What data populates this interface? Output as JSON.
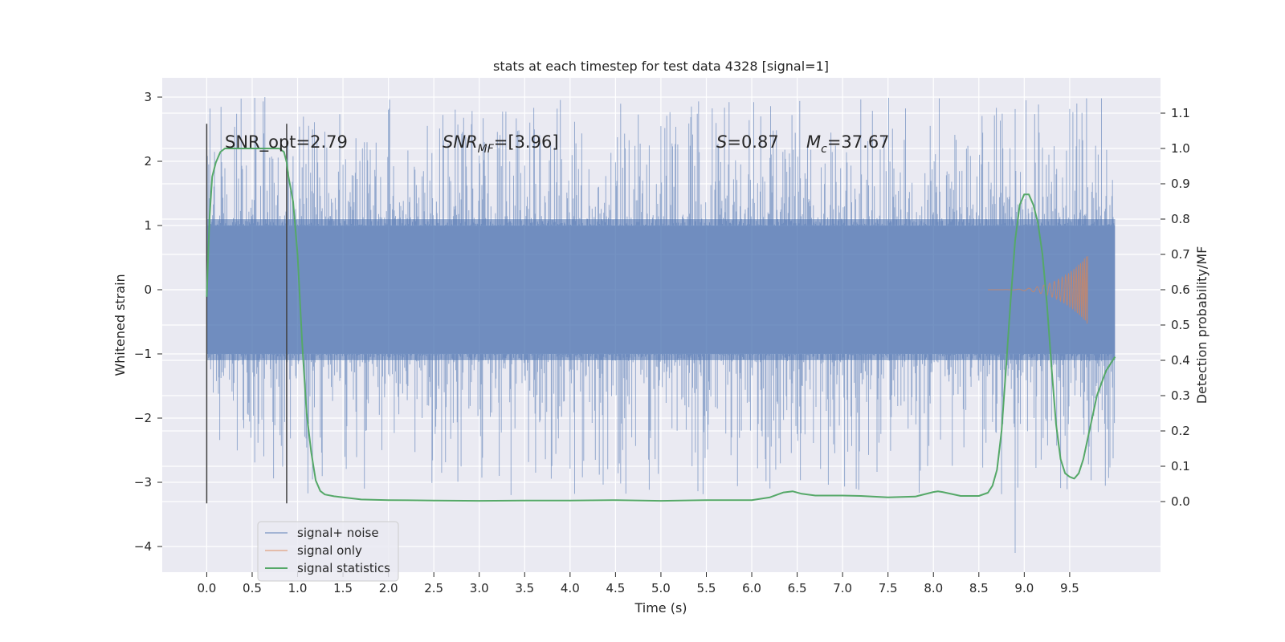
{
  "chart_data": {
    "type": "line",
    "title": "stats at each timestep for test data 4328 [signal=1]",
    "xlabel": "Time (s)",
    "ylabel": "Whitened strain",
    "ylabel_right": "Detection probability/MF",
    "xlim": [
      -0.49,
      10.5
    ],
    "ylim": [
      -4.4,
      3.3
    ],
    "ylim_right": [
      -0.2,
      1.2
    ],
    "xticks": [
      "0.0",
      "0.5",
      "1.0",
      "1.5",
      "2.0",
      "2.5",
      "3.0",
      "3.5",
      "4.0",
      "4.5",
      "5.0",
      "5.5",
      "6.0",
      "6.5",
      "7.0",
      "7.5",
      "8.0",
      "8.5",
      "9.0",
      "9.5"
    ],
    "yticks": [
      "3",
      "2",
      "1",
      "0",
      "−1",
      "−2",
      "−3",
      "−4"
    ],
    "yticks_right": [
      "1.1",
      "1.0",
      "0.9",
      "0.8",
      "0.7",
      "0.6",
      "0.5",
      "0.4",
      "0.3",
      "0.2",
      "0.1",
      "0.0"
    ],
    "grid": true,
    "legend_position": "lower-left",
    "series": [
      {
        "name": "signal+ noise",
        "color": "#4c72b0",
        "axis": "left",
        "kind": "noise strain 0–10 s, bulk ±1.1, peaks +3.0 / −4.1"
      },
      {
        "name": "signal only",
        "color": "#dd8452",
        "axis": "left",
        "kind": "chirp rising near 9.7 s, peak ±0.55"
      },
      {
        "name": "signal statistics",
        "color": "#55a868",
        "axis": "right",
        "x": [
          0.0,
          0.03,
          0.06,
          0.1,
          0.15,
          0.2,
          0.3,
          0.4,
          0.5,
          0.6,
          0.7,
          0.8,
          0.85,
          0.88,
          0.9,
          0.95,
          1.0,
          1.05,
          1.1,
          1.15,
          1.2,
          1.25,
          1.3,
          1.4,
          1.5,
          1.7,
          2.0,
          2.5,
          3.0,
          3.5,
          4.0,
          4.5,
          5.0,
          5.5,
          6.0,
          6.2,
          6.35,
          6.45,
          6.55,
          6.7,
          7.0,
          7.2,
          7.5,
          7.8,
          8.0,
          8.05,
          8.1,
          8.3,
          8.5,
          8.6,
          8.65,
          8.7,
          8.75,
          8.8,
          8.85,
          8.9,
          8.95,
          9.0,
          9.05,
          9.1,
          9.15,
          9.2,
          9.25,
          9.3,
          9.35,
          9.4,
          9.45,
          9.5,
          9.55,
          9.6,
          9.65,
          9.7,
          9.75,
          9.8,
          9.9,
          10.0
        ],
        "values": [
          0.58,
          0.8,
          0.92,
          0.96,
          0.99,
          1.0,
          1.0,
          1.0,
          1.0,
          1.0,
          1.0,
          1.0,
          0.99,
          0.96,
          0.92,
          0.85,
          0.7,
          0.45,
          0.25,
          0.14,
          0.06,
          0.03,
          0.02,
          0.015,
          0.012,
          0.006,
          0.004,
          0.003,
          0.002,
          0.003,
          0.003,
          0.004,
          0.002,
          0.004,
          0.004,
          0.012,
          0.026,
          0.029,
          0.022,
          0.017,
          0.017,
          0.016,
          0.012,
          0.014,
          0.027,
          0.029,
          0.027,
          0.016,
          0.016,
          0.025,
          0.045,
          0.09,
          0.2,
          0.38,
          0.57,
          0.74,
          0.84,
          0.87,
          0.87,
          0.84,
          0.79,
          0.7,
          0.56,
          0.38,
          0.22,
          0.12,
          0.08,
          0.07,
          0.065,
          0.08,
          0.12,
          0.18,
          0.24,
          0.3,
          0.37,
          0.41
        ]
      }
    ],
    "annotations": {
      "snr_opt": "SNR_opt=2.79",
      "snr_mf_main": "SNR",
      "snr_mf_sub": "MF",
      "snr_mf_val": "=[3.96]",
      "s_main": "S",
      "s_val": "=0.87",
      "mc_main": "M",
      "mc_sub": "c",
      "mc_val": "=37.67"
    },
    "vertical_markers": [
      0.0,
      0.88
    ]
  }
}
